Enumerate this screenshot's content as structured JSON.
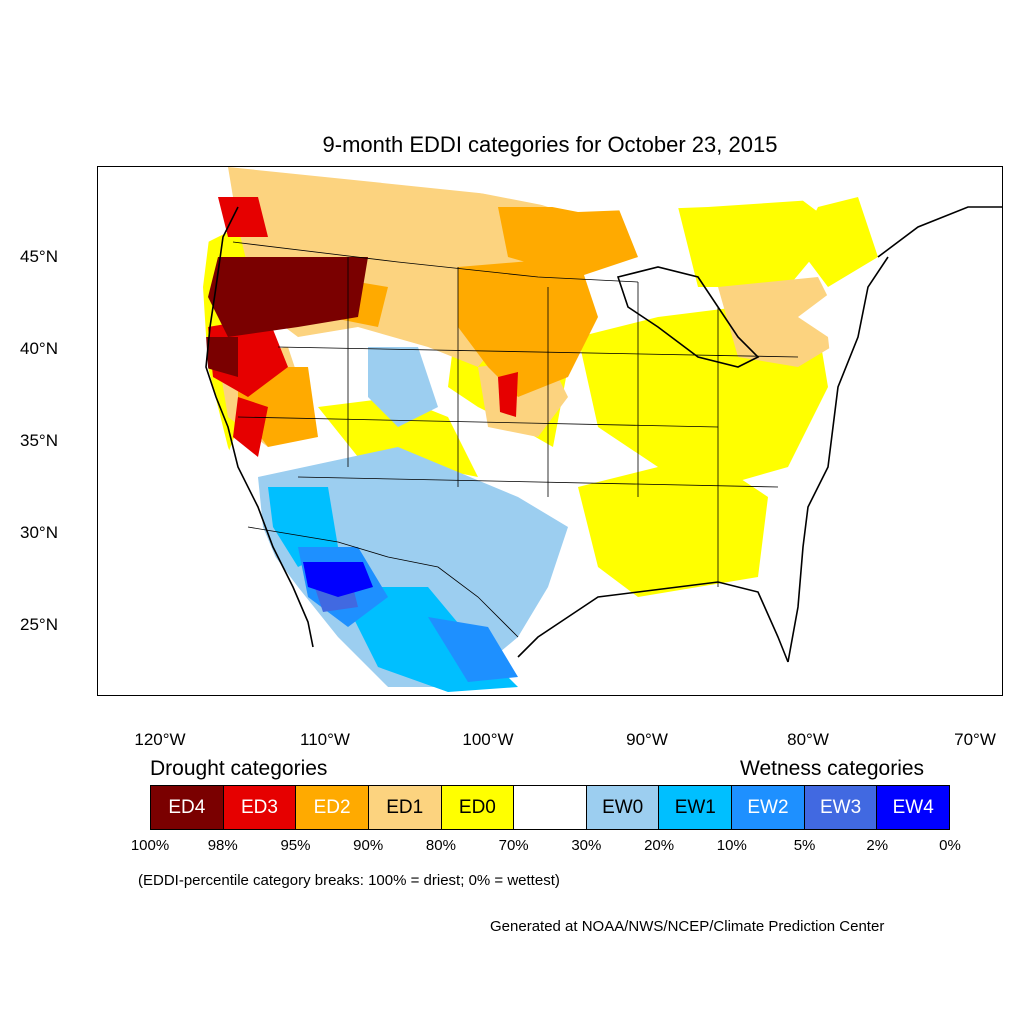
{
  "title": "9-month EDDI categories for October 23, 2015",
  "lat_labels": [
    "45°N",
    "40°N",
    "35°N",
    "30°N",
    "25°N"
  ],
  "lon_labels": [
    "120°W",
    "110°W",
    "100°W",
    "90°W",
    "80°W",
    "70°W"
  ],
  "drought_heading": "Drought categories",
  "wetness_heading": "Wetness categories",
  "legend": [
    {
      "label": "ED4",
      "color": "#7a0000",
      "text_color": "#ffffff"
    },
    {
      "label": "ED3",
      "color": "#e60000",
      "text_color": "#ffffff"
    },
    {
      "label": "ED2",
      "color": "#ffaa00",
      "text_color": "#ffffff"
    },
    {
      "label": "ED1",
      "color": "#fcd37f",
      "text_color": "#000000"
    },
    {
      "label": "ED0",
      "color": "#ffff00",
      "text_color": "#000000"
    },
    {
      "label": "",
      "color": "#ffffff",
      "text_color": "#000000"
    },
    {
      "label": "EW0",
      "color": "#9ccef0",
      "text_color": "#000000"
    },
    {
      "label": "EW1",
      "color": "#00bfff",
      "text_color": "#000000"
    },
    {
      "label": "EW2",
      "color": "#1e90ff",
      "text_color": "#ffffff"
    },
    {
      "label": "EW3",
      "color": "#4169e1",
      "text_color": "#ffffff"
    },
    {
      "label": "EW4",
      "color": "#0000ff",
      "text_color": "#ffffff"
    }
  ],
  "percent_breaks": [
    "100%",
    "98%",
    "95%",
    "90%",
    "80%",
    "70%",
    "30%",
    "20%",
    "10%",
    "5%",
    "2%",
    "0%"
  ],
  "note": "(EDDI-percentile category breaks: 100% = driest; 0% = wettest)",
  "credit": "Generated at NOAA/NWS/NCEP/Climate Prediction Center"
}
